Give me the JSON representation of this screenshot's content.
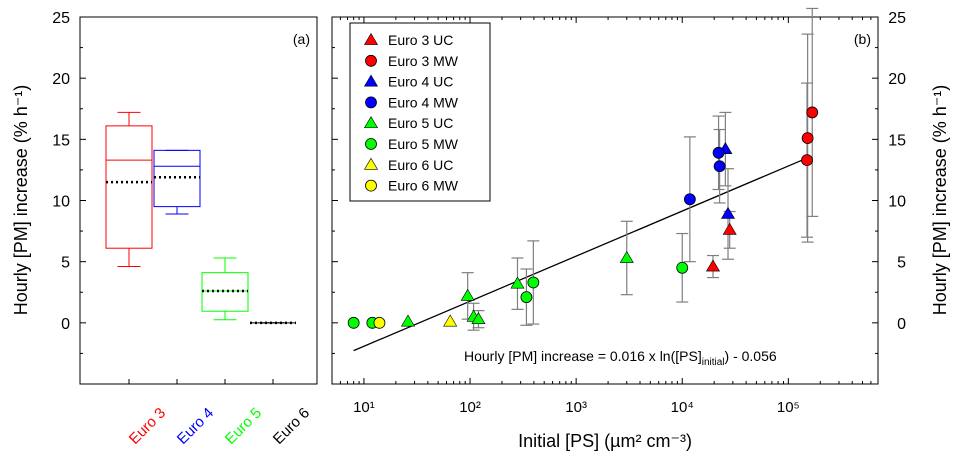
{
  "chart_data": [
    {
      "panel": "(a)",
      "type": "box",
      "ylabel": "Hourly [PM] increase (% h⁻¹)",
      "ylim": [
        -5,
        25
      ],
      "yticks": [
        0,
        5,
        10,
        15,
        20,
        25
      ],
      "categories": [
        "Euro 3",
        "Euro 4",
        "Euro 5",
        "Euro 6"
      ],
      "category_colors": [
        "#ff0000",
        "#0000ff",
        "#00ff00",
        "#000000"
      ],
      "boxes": [
        {
          "min": 4.6,
          "q1": 6.1,
          "median": 13.3,
          "q3": 16.1,
          "max": 17.2,
          "mean": 11.5
        },
        {
          "min": 8.9,
          "q1": 9.5,
          "median": 12.8,
          "q3": 14.1,
          "max": 14.1,
          "mean": 11.9
        },
        {
          "min": 0.25,
          "q1": 0.95,
          "median": 2.6,
          "q3": 4.1,
          "max": 5.3,
          "mean": 2.6
        },
        {
          "min": 0.0,
          "q1": 0.0,
          "median": 0.0,
          "q3": 0.0,
          "max": 0.0,
          "mean": 0.0
        }
      ]
    },
    {
      "panel": "(b)",
      "type": "scatter",
      "xlabel": "Initial [PS] (µm² cm⁻³)",
      "ylabel": "Hourly [PM] increase (% h⁻¹)",
      "xscale": "log",
      "xlim": [
        5,
        700000
      ],
      "ylim": [
        -5,
        25
      ],
      "xtick_labels": [
        "10¹",
        "10²",
        "10³",
        "10⁴",
        "10⁵"
      ],
      "xtick_values": [
        10,
        100,
        1000,
        10000,
        100000
      ],
      "yticks": [
        0,
        5,
        10,
        15,
        20,
        25
      ],
      "legend_position": "top-left",
      "series": [
        {
          "name": "Euro 3 UC",
          "marker": "triangle",
          "color": "#ff0000",
          "points": [
            {
              "x": 19500,
              "y": 4.6,
              "err": 0.9
            },
            {
              "x": 28000,
              "y": 7.6,
              "err": 1.5
            }
          ]
        },
        {
          "name": "Euro 3 MW",
          "marker": "circle",
          "color": "#ff0000",
          "points": [
            {
              "x": 150000,
              "y": 13.3,
              "err": 6.3
            },
            {
              "x": 152000,
              "y": 15.1,
              "err": 8.5
            },
            {
              "x": 168000,
              "y": 17.2,
              "err": 8.5
            }
          ]
        },
        {
          "name": "Euro 4 UC",
          "marker": "triangle",
          "color": "#0000ff",
          "points": [
            {
              "x": 25500,
              "y": 14.2,
              "err": 3.0
            },
            {
              "x": 27000,
              "y": 8.9,
              "err": 3.7
            }
          ]
        },
        {
          "name": "Euro 4 MW",
          "marker": "circle",
          "color": "#0000ff",
          "points": [
            {
              "x": 11800,
              "y": 10.1,
              "err": 5.1
            },
            {
              "x": 22000,
              "y": 13.9,
              "err": 3.0
            },
            {
              "x": 22500,
              "y": 12.8,
              "err": 3.0
            }
          ]
        },
        {
          "name": "Euro 5 UC",
          "marker": "triangle",
          "color": "#00ff00",
          "points": [
            {
              "x": 95,
              "y": 2.2,
              "err": 1.9
            },
            {
              "x": 108,
              "y": 0.5,
              "err": 1.1
            },
            {
              "x": 120,
              "y": 0.3,
              "err": 0.7
            },
            {
              "x": 280,
              "y": 3.2,
              "err": 2.1
            },
            {
              "x": 3000,
              "y": 5.3,
              "err": 3.0
            },
            {
              "x": 26,
              "y": 0.1,
              "err": 0.0
            }
          ]
        },
        {
          "name": "Euro 5 MW",
          "marker": "circle",
          "color": "#00ff00",
          "points": [
            {
              "x": 8,
              "y": 0.0,
              "err": 0.0
            },
            {
              "x": 12,
              "y": 0.0,
              "err": 0.0
            },
            {
              "x": 340,
              "y": 2.1,
              "err": 2.3
            },
            {
              "x": 395,
              "y": 3.3,
              "err": 3.4
            },
            {
              "x": 10000,
              "y": 4.5,
              "err": 2.8
            }
          ]
        },
        {
          "name": "Euro 6 UC",
          "marker": "triangle",
          "color": "#ffff00",
          "points": [
            {
              "x": 65,
              "y": 0.1,
              "err": 0.0
            }
          ]
        },
        {
          "name": "Euro 6 MW",
          "marker": "circle",
          "color": "#ffff00",
          "points": [
            {
              "x": 14,
              "y": 0.0,
              "err": 0.0
            }
          ]
        }
      ],
      "fit": {
        "slope": 0.016,
        "intercept": -0.056,
        "x_range": [
          8,
          150000
        ]
      },
      "fit_equation_parts": [
        "Hourly [PM] increase = 0.016 x ln([PS]",
        "initial",
        ") - 0.056"
      ]
    }
  ]
}
